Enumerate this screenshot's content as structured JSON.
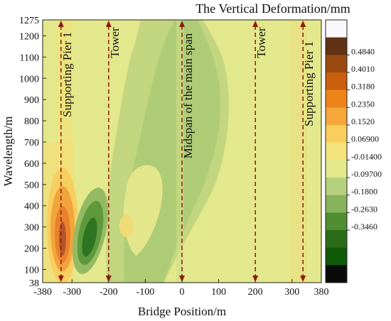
{
  "chart_data": {
    "type": "heatmap",
    "title": "The Vertical Deformation/mm",
    "xlabel": "Bridge Position/m",
    "ylabel": "Wavelength/m",
    "xlim": [
      -380,
      380
    ],
    "ylim": [
      38,
      1275
    ],
    "x_ticks": [
      "-380",
      "-300",
      "-200",
      "-100",
      "0",
      "100",
      "200",
      "300",
      "380"
    ],
    "x_tick_values": [
      -380,
      -300,
      -200,
      -100,
      0,
      100,
      200,
      300,
      380
    ],
    "y_ticks": [
      "38",
      "100",
      "200",
      "300",
      "400",
      "500",
      "600",
      "700",
      "800",
      "900",
      "1000",
      "1100",
      "1200",
      "1275"
    ],
    "y_tick_values": [
      38,
      100,
      200,
      300,
      400,
      500,
      600,
      700,
      800,
      900,
      1000,
      1100,
      1200,
      1275
    ],
    "colorbar": {
      "labels": [
        "0.4840",
        "0.4010",
        "0.3180",
        "0.2350",
        "0.1520",
        "0.06900",
        "-0.01400",
        "-0.09700",
        "-0.1800",
        "-0.2630",
        "-0.3460"
      ],
      "colors_top_to_bottom": [
        "#fbf8fb",
        "#5e3212",
        "#9a4a10",
        "#c95f0c",
        "#ee8418",
        "#f5a739",
        "#f8cf5d",
        "#f4e27c",
        "#e3e88a",
        "#b7d07d",
        "#86b35c",
        "#4f8e32",
        "#2b6c18",
        "#0f5a06",
        "#0a0a0a"
      ]
    },
    "reference_lines": [
      {
        "label": "Supporting Pier 1",
        "x": -330
      },
      {
        "label": "Tower",
        "x": -200
      },
      {
        "label": "Midspan of the main span",
        "x": 0
      },
      {
        "label": "Tower",
        "x": 200
      },
      {
        "label": "Supporting Pier 1",
        "x": 330
      }
    ],
    "background_color": "#e4e88c",
    "line_color": "#8b1a0c"
  }
}
